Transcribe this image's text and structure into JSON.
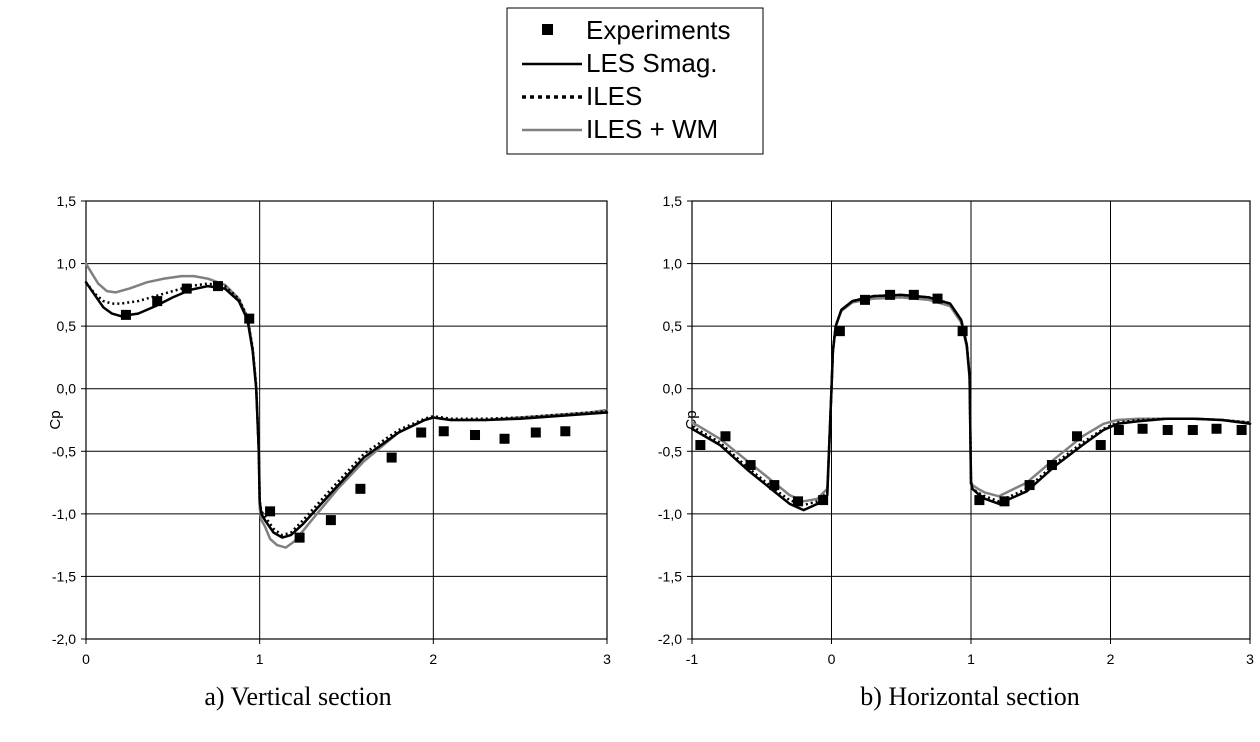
{
  "legend": {
    "items": [
      {
        "label": "Experiments",
        "kind": "marker",
        "color": "#000000"
      },
      {
        "label": "LES Smag.",
        "kind": "solid",
        "color": "#000000"
      },
      {
        "label": "ILES",
        "kind": "dotted",
        "color": "#000000"
      },
      {
        "label": "ILES + WM",
        "kind": "solid",
        "color": "#808080"
      }
    ]
  },
  "chart_data": [
    {
      "type": "line",
      "caption": "a) Vertical section",
      "ylabel": "Cp",
      "xlabel": "",
      "xlim": [
        0,
        3
      ],
      "ylim": [
        -2.0,
        1.5
      ],
      "xticks": [
        "0",
        "1",
        "2",
        "3"
      ],
      "yticks": [
        "1,5",
        "1,0",
        "0,5",
        "0,0",
        "-0,5",
        "-1,0",
        "-1,5",
        "-2,0"
      ],
      "grid": true,
      "series": [
        {
          "name": "Experiments",
          "type": "scatter",
          "color": "#000000",
          "x": [
            0.23,
            0.41,
            0.58,
            0.76,
            0.94,
            1.06,
            1.23,
            1.41,
            1.58,
            1.76,
            1.93,
            2.06,
            2.24,
            2.41,
            2.59,
            2.76
          ],
          "y": [
            0.59,
            0.7,
            0.8,
            0.82,
            0.56,
            -0.98,
            -1.19,
            -1.05,
            -0.8,
            -0.55,
            -0.35,
            -0.34,
            -0.37,
            -0.4,
            -0.35,
            -0.34
          ]
        },
        {
          "name": "LES Smag.",
          "type": "line",
          "color": "#000000",
          "dash": "solid",
          "x": [
            0.0,
            0.05,
            0.1,
            0.15,
            0.2,
            0.3,
            0.4,
            0.5,
            0.6,
            0.7,
            0.8,
            0.88,
            0.93,
            0.96,
            0.98,
            0.995,
            1.0,
            1.01,
            1.03,
            1.08,
            1.13,
            1.18,
            1.25,
            1.4,
            1.6,
            1.8,
            1.95,
            2.0,
            2.1,
            2.3,
            2.5,
            2.7,
            2.9,
            3.0
          ],
          "y": [
            0.85,
            0.75,
            0.65,
            0.6,
            0.58,
            0.6,
            0.66,
            0.73,
            0.79,
            0.82,
            0.8,
            0.7,
            0.55,
            0.3,
            0.0,
            -0.5,
            -0.9,
            -1.0,
            -1.05,
            -1.15,
            -1.19,
            -1.17,
            -1.08,
            -0.85,
            -0.55,
            -0.35,
            -0.25,
            -0.23,
            -0.25,
            -0.25,
            -0.24,
            -0.22,
            -0.2,
            -0.19
          ]
        },
        {
          "name": "ILES",
          "type": "line",
          "color": "#000000",
          "dash": "dotted",
          "x": [
            0.0,
            0.05,
            0.1,
            0.15,
            0.2,
            0.3,
            0.4,
            0.5,
            0.6,
            0.7,
            0.8,
            0.88,
            0.93,
            0.96,
            0.98,
            0.995,
            1.0,
            1.01,
            1.03,
            1.08,
            1.13,
            1.18,
            1.25,
            1.4,
            1.6,
            1.8,
            1.95,
            2.0,
            2.1,
            2.3,
            2.5,
            2.7,
            2.9,
            3.0
          ],
          "y": [
            0.85,
            0.76,
            0.7,
            0.68,
            0.68,
            0.7,
            0.74,
            0.78,
            0.82,
            0.84,
            0.82,
            0.72,
            0.57,
            0.32,
            0.02,
            -0.5,
            -0.9,
            -0.98,
            -1.02,
            -1.12,
            -1.17,
            -1.15,
            -1.05,
            -0.82,
            -0.52,
            -0.33,
            -0.24,
            -0.22,
            -0.24,
            -0.24,
            -0.23,
            -0.21,
            -0.19,
            -0.18
          ]
        },
        {
          "name": "ILES + WM",
          "type": "line",
          "color": "#808080",
          "dash": "solid",
          "x": [
            0.0,
            0.03,
            0.07,
            0.12,
            0.17,
            0.25,
            0.35,
            0.45,
            0.55,
            0.62,
            0.7,
            0.8,
            0.88,
            0.93,
            0.96,
            0.98,
            0.995,
            1.0,
            1.01,
            1.03,
            1.06,
            1.1,
            1.15,
            1.2,
            1.3,
            1.45,
            1.6,
            1.8,
            1.95,
            2.0,
            2.1,
            2.3,
            2.5,
            2.7,
            2.9,
            3.0
          ],
          "y": [
            1.0,
            0.93,
            0.84,
            0.78,
            0.77,
            0.8,
            0.85,
            0.88,
            0.9,
            0.9,
            0.88,
            0.83,
            0.72,
            0.57,
            0.32,
            0.02,
            -0.5,
            -0.95,
            -1.05,
            -1.1,
            -1.2,
            -1.25,
            -1.27,
            -1.22,
            -1.05,
            -0.8,
            -0.58,
            -0.35,
            -0.25,
            -0.23,
            -0.25,
            -0.25,
            -0.23,
            -0.21,
            -0.19,
            -0.17
          ]
        }
      ]
    },
    {
      "type": "line",
      "caption": "b) Horizontal section",
      "ylabel": "Cp",
      "xlabel": "",
      "xlim": [
        -1,
        3
      ],
      "ylim": [
        -2.0,
        1.5
      ],
      "xticks": [
        "-1",
        "0",
        "1",
        "2",
        "3"
      ],
      "yticks": [
        "1,5",
        "1,0",
        "0,5",
        "0,0",
        "-0,5",
        "-1,0",
        "-1,5",
        "-2,0"
      ],
      "grid": true,
      "series": [
        {
          "name": "Experiments",
          "type": "scatter",
          "color": "#000000",
          "x": [
            -0.94,
            -0.76,
            -0.58,
            -0.41,
            -0.24,
            -0.06,
            0.06,
            0.24,
            0.42,
            0.59,
            0.76,
            0.94,
            1.06,
            1.24,
            1.42,
            1.58,
            1.76,
            1.93,
            2.06,
            2.23,
            2.41,
            2.59,
            2.76,
            2.94
          ],
          "y": [
            -0.45,
            -0.38,
            -0.61,
            -0.77,
            -0.9,
            -0.89,
            0.46,
            0.71,
            0.75,
            0.75,
            0.72,
            0.46,
            -0.89,
            -0.9,
            -0.77,
            -0.61,
            -0.38,
            -0.45,
            -0.33,
            -0.32,
            -0.33,
            -0.33,
            -0.32,
            -0.33
          ]
        },
        {
          "name": "LES Smag.",
          "type": "line",
          "color": "#000000",
          "dash": "solid",
          "x": [
            -1.0,
            -0.8,
            -0.6,
            -0.4,
            -0.3,
            -0.2,
            -0.1,
            -0.03,
            0.0,
            0.01,
            0.03,
            0.07,
            0.15,
            0.3,
            0.5,
            0.7,
            0.85,
            0.93,
            0.97,
            0.99,
            1.0,
            1.01,
            1.05,
            1.1,
            1.2,
            1.4,
            1.6,
            1.8,
            1.95,
            2.05,
            2.2,
            2.4,
            2.6,
            2.8,
            3.0
          ],
          "y": [
            -0.32,
            -0.45,
            -0.65,
            -0.83,
            -0.92,
            -0.97,
            -0.92,
            -0.85,
            0.0,
            0.3,
            0.5,
            0.63,
            0.7,
            0.74,
            0.75,
            0.73,
            0.68,
            0.55,
            0.35,
            0.1,
            -0.75,
            -0.8,
            -0.84,
            -0.88,
            -0.92,
            -0.82,
            -0.62,
            -0.45,
            -0.33,
            -0.28,
            -0.26,
            -0.24,
            -0.24,
            -0.25,
            -0.28
          ]
        },
        {
          "name": "ILES",
          "type": "line",
          "color": "#000000",
          "dash": "dotted",
          "x": [
            -1.0,
            -0.8,
            -0.6,
            -0.4,
            -0.3,
            -0.2,
            -0.1,
            -0.03,
            0.0,
            0.01,
            0.03,
            0.07,
            0.15,
            0.3,
            0.5,
            0.7,
            0.85,
            0.93,
            0.97,
            0.99,
            1.0,
            1.01,
            1.05,
            1.1,
            1.2,
            1.4,
            1.6,
            1.8,
            1.95,
            2.05,
            2.2,
            2.4,
            2.6,
            2.8,
            3.0
          ],
          "y": [
            -0.3,
            -0.43,
            -0.63,
            -0.81,
            -0.89,
            -0.93,
            -0.9,
            -0.83,
            0.0,
            0.3,
            0.5,
            0.63,
            0.7,
            0.74,
            0.75,
            0.73,
            0.68,
            0.55,
            0.35,
            0.1,
            -0.76,
            -0.8,
            -0.83,
            -0.86,
            -0.9,
            -0.8,
            -0.6,
            -0.43,
            -0.32,
            -0.27,
            -0.25,
            -0.24,
            -0.24,
            -0.25,
            -0.27
          ]
        },
        {
          "name": "ILES + WM",
          "type": "line",
          "color": "#808080",
          "dash": "solid",
          "x": [
            -1.0,
            -0.95,
            -0.8,
            -0.6,
            -0.4,
            -0.3,
            -0.2,
            -0.1,
            -0.03,
            0.0,
            0.01,
            0.03,
            0.07,
            0.15,
            0.3,
            0.5,
            0.7,
            0.85,
            0.93,
            0.97,
            0.99,
            1.0,
            1.01,
            1.05,
            1.1,
            1.2,
            1.4,
            1.6,
            1.8,
            1.95,
            2.05,
            2.2,
            2.4,
            2.6,
            2.8,
            3.0
          ],
          "y": [
            -0.27,
            -0.3,
            -0.4,
            -0.58,
            -0.76,
            -0.85,
            -0.9,
            -0.88,
            -0.8,
            0.0,
            0.3,
            0.5,
            0.62,
            0.69,
            0.72,
            0.73,
            0.71,
            0.66,
            0.53,
            0.33,
            0.08,
            -0.74,
            -0.77,
            -0.8,
            -0.83,
            -0.86,
            -0.75,
            -0.56,
            -0.38,
            -0.28,
            -0.25,
            -0.24,
            -0.24,
            -0.24,
            -0.25,
            -0.27
          ]
        }
      ]
    }
  ]
}
